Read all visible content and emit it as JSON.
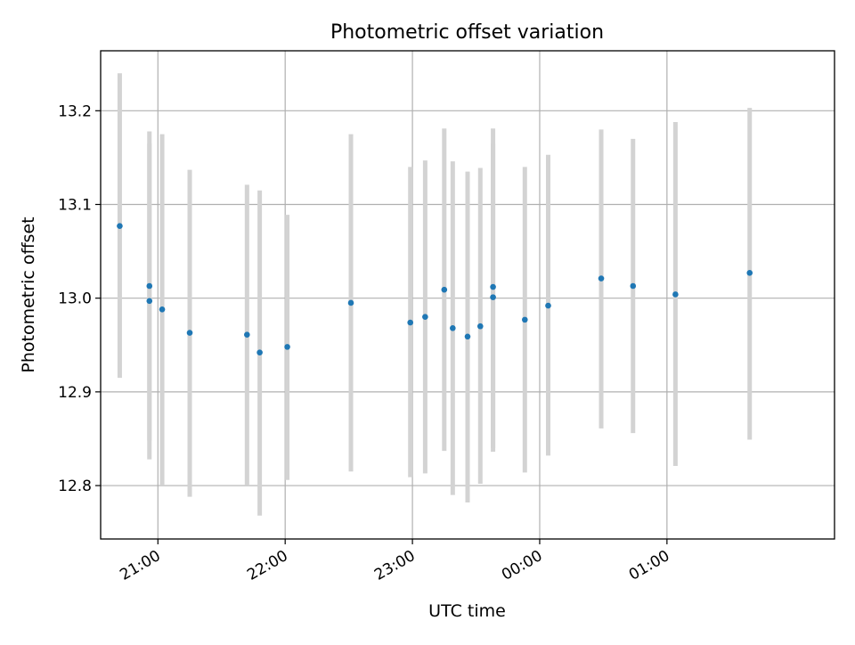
{
  "chart_data": {
    "type": "scatter",
    "title": "Photometric offset variation",
    "xlabel": "UTC time",
    "ylabel": "Photometric offset",
    "x_ticks": [
      "21:00",
      "22:00",
      "23:00",
      "00:00",
      "01:00"
    ],
    "y_ticks": [
      "12.8",
      "12.9",
      "13.0",
      "13.1",
      "13.2"
    ],
    "xlim": [
      "20:33",
      "02:19"
    ],
    "ylim": [
      12.743,
      13.264
    ],
    "grid": true,
    "colors": {
      "point": "#1f77b4",
      "errorbar": "#d3d3d3"
    },
    "series": [
      {
        "points": [
          {
            "time": "20:42",
            "y": 13.077,
            "y_low": 12.915,
            "y_high": 13.24
          },
          {
            "time": "20:56",
            "y": 12.997,
            "y_low": 12.848,
            "y_high": 13.165
          },
          {
            "time": "20:56",
            "y": 13.013,
            "y_low": 12.828,
            "y_high": 13.178
          },
          {
            "time": "21:02",
            "y": 12.988,
            "y_low": 12.8,
            "y_high": 13.175
          },
          {
            "time": "21:15",
            "y": 12.963,
            "y_low": 12.788,
            "y_high": 13.137
          },
          {
            "time": "21:42",
            "y": 12.961,
            "y_low": 12.8,
            "y_high": 13.121
          },
          {
            "time": "21:48",
            "y": 12.942,
            "y_low": 12.768,
            "y_high": 13.115
          },
          {
            "time": "22:01",
            "y": 12.948,
            "y_low": 12.806,
            "y_high": 13.089
          },
          {
            "time": "22:31",
            "y": 12.995,
            "y_low": 12.815,
            "y_high": 13.175
          },
          {
            "time": "22:59",
            "y": 12.974,
            "y_low": 12.809,
            "y_high": 13.14
          },
          {
            "time": "23:06",
            "y": 12.98,
            "y_low": 12.813,
            "y_high": 13.147
          },
          {
            "time": "23:15",
            "y": 13.009,
            "y_low": 12.837,
            "y_high": 13.181
          },
          {
            "time": "23:19",
            "y": 12.968,
            "y_low": 12.79,
            "y_high": 13.146
          },
          {
            "time": "23:26",
            "y": 12.959,
            "y_low": 12.782,
            "y_high": 13.135
          },
          {
            "time": "23:32",
            "y": 12.97,
            "y_low": 12.802,
            "y_high": 13.139
          },
          {
            "time": "23:38",
            "y": 13.001,
            "y_low": 12.836,
            "y_high": 13.165
          },
          {
            "time": "23:38",
            "y": 13.012,
            "y_low": 12.84,
            "y_high": 13.181
          },
          {
            "time": "23:53",
            "y": 12.977,
            "y_low": 12.814,
            "y_high": 13.14
          },
          {
            "time": "00:04",
            "y": 12.992,
            "y_low": 12.832,
            "y_high": 13.153
          },
          {
            "time": "00:29",
            "y": 13.021,
            "y_low": 12.861,
            "y_high": 13.18
          },
          {
            "time": "00:44",
            "y": 13.013,
            "y_low": 12.856,
            "y_high": 13.17
          },
          {
            "time": "01:04",
            "y": 13.004,
            "y_low": 12.821,
            "y_high": 13.188
          },
          {
            "time": "01:39",
            "y": 13.027,
            "y_low": 12.849,
            "y_high": 13.203
          }
        ]
      }
    ]
  }
}
